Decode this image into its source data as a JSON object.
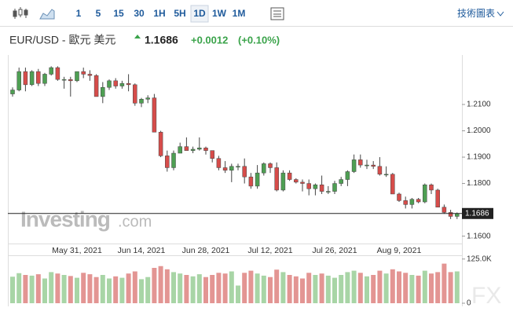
{
  "toolbar": {
    "intervals": [
      "1",
      "5",
      "15",
      "30",
      "1H",
      "5H",
      "1D",
      "1W",
      "1M"
    ],
    "selected": "1D",
    "chart_link": "技術圖表"
  },
  "header": {
    "symbol": "EUR/USD - 歐元 美元",
    "price": "1.1686",
    "change": "+0.0012",
    "change_percent": "(+0.10%)"
  },
  "watermark": {
    "brand": "Investing",
    "domain": ".com",
    "corner": "FX"
  },
  "chart_data": {
    "type": "candlestick",
    "categories": [
      null,
      null,
      null,
      null,
      null,
      null,
      null,
      null,
      null,
      null,
      "May 31, 2021",
      null,
      null,
      null,
      null,
      null,
      null,
      null,
      null,
      null,
      "Jun 14, 2021",
      null,
      null,
      null,
      null,
      null,
      null,
      null,
      null,
      null,
      "Jun 28, 2021",
      null,
      null,
      null,
      null,
      null,
      null,
      null,
      null,
      null,
      "Jul 12, 2021",
      null,
      null,
      null,
      null,
      null,
      null,
      null,
      null,
      null,
      "Jul 26, 2021",
      null,
      null,
      null,
      null,
      null,
      null,
      null,
      null,
      null,
      "Aug 9, 2021",
      null,
      null,
      null,
      null,
      null,
      null,
      null,
      null,
      null
    ],
    "open": [
      1.214,
      1.2155,
      1.2225,
      1.2175,
      1.2225,
      1.218,
      1.2215,
      1.224,
      1.2195,
      1.2195,
      1.219,
      1.2225,
      1.2215,
      1.221,
      1.213,
      1.2165,
      1.219,
      1.217,
      1.218,
      1.2175,
      1.2105,
      1.212,
      1.2125,
      1.1995,
      1.1905,
      1.186,
      1.1915,
      1.194,
      1.1925,
      1.193,
      1.1935,
      1.1925,
      1.1895,
      1.186,
      1.185,
      1.1865,
      1.1865,
      1.1825,
      1.179,
      1.184,
      1.1875,
      1.186,
      1.1775,
      1.184,
      1.1815,
      1.1805,
      1.18,
      1.178,
      1.1795,
      1.177,
      1.177,
      1.18,
      1.1815,
      1.1845,
      1.189,
      1.187,
      1.187,
      1.1865,
      1.1835,
      1.1835,
      1.176,
      1.1735,
      1.172,
      1.174,
      1.173,
      1.1795,
      1.1775,
      1.171,
      1.169,
      1.1675
    ],
    "high": [
      1.2165,
      1.224,
      1.224,
      1.223,
      1.2235,
      1.222,
      1.2245,
      1.2245,
      1.2205,
      1.2205,
      1.2225,
      1.224,
      1.223,
      1.2215,
      1.2185,
      1.2195,
      1.22,
      1.219,
      1.2215,
      1.218,
      1.2125,
      1.2135,
      1.214,
      1.2,
      1.1925,
      1.1925,
      1.1955,
      1.1975,
      1.194,
      1.1975,
      1.194,
      1.1925,
      1.1905,
      1.1885,
      1.1875,
      1.1875,
      1.1895,
      1.184,
      1.187,
      1.188,
      1.188,
      1.188,
      1.185,
      1.185,
      1.182,
      1.1815,
      1.1815,
      1.18,
      1.183,
      1.179,
      1.181,
      1.1825,
      1.185,
      1.191,
      1.191,
      1.189,
      1.1885,
      1.19,
      1.1865,
      1.184,
      1.1765,
      1.175,
      1.1745,
      1.1745,
      1.18,
      1.18,
      1.178,
      1.172,
      1.17,
      1.169
    ],
    "low": [
      1.213,
      1.215,
      1.215,
      1.217,
      1.217,
      1.217,
      1.221,
      1.219,
      1.216,
      1.213,
      1.2185,
      1.22,
      1.219,
      1.213,
      1.2105,
      1.2155,
      1.216,
      1.216,
      1.215,
      1.2095,
      1.209,
      1.2105,
      1.1995,
      1.19,
      1.1845,
      1.185,
      1.1915,
      1.1925,
      1.1915,
      1.1925,
      1.191,
      1.188,
      1.185,
      1.184,
      1.1805,
      1.185,
      1.18,
      1.178,
      1.178,
      1.183,
      1.184,
      1.177,
      1.177,
      1.181,
      1.18,
      1.177,
      1.1755,
      1.1755,
      1.176,
      1.176,
      1.176,
      1.179,
      1.179,
      1.184,
      1.186,
      1.1855,
      1.1855,
      1.183,
      1.1825,
      1.176,
      1.173,
      1.1705,
      1.1705,
      1.1725,
      1.1725,
      1.176,
      1.171,
      1.1685,
      1.1665,
      1.1665
    ],
    "close": [
      1.2155,
      1.2225,
      1.2175,
      1.2225,
      1.218,
      1.2215,
      1.224,
      1.2195,
      1.2195,
      1.219,
      1.2225,
      1.2215,
      1.221,
      1.213,
      1.2165,
      1.219,
      1.217,
      1.218,
      1.2175,
      1.2105,
      1.212,
      1.2125,
      1.1995,
      1.1905,
      1.186,
      1.1915,
      1.194,
      1.1925,
      1.193,
      1.1935,
      1.1925,
      1.1895,
      1.186,
      1.185,
      1.1865,
      1.1865,
      1.1825,
      1.179,
      1.184,
      1.1875,
      1.186,
      1.1775,
      1.184,
      1.1815,
      1.1805,
      1.18,
      1.178,
      1.1795,
      1.177,
      1.177,
      1.18,
      1.1815,
      1.1845,
      1.189,
      1.187,
      1.187,
      1.1865,
      1.1835,
      1.1835,
      1.176,
      1.1735,
      1.172,
      1.174,
      1.173,
      1.1795,
      1.1775,
      1.171,
      1.169,
      1.1675,
      1.1686
    ],
    "volume": {
      "values": [
        75000,
        85000,
        80000,
        78000,
        82000,
        70000,
        88000,
        84000,
        80000,
        77000,
        72000,
        86000,
        82000,
        74000,
        80000,
        70000,
        76000,
        72000,
        84000,
        90000,
        68000,
        74000,
        100000,
        105000,
        96000,
        88000,
        84000,
        80000,
        76000,
        82000,
        74000,
        80000,
        86000,
        84000,
        90000,
        50000,
        86000,
        92000,
        84000,
        78000,
        74000,
        95000,
        88000,
        80000,
        76000,
        70000,
        86000,
        80000,
        84000,
        78000,
        72000,
        80000,
        88000,
        92000,
        86000,
        76000,
        80000,
        92000,
        84000,
        96000,
        90000,
        86000,
        80000,
        78000,
        92000,
        84000,
        88000,
        112000,
        88000,
        90000
      ],
      "ylim": [
        0,
        140000
      ],
      "yticks": [
        0,
        {
          "value": 125000,
          "label": "125.0K"
        }
      ],
      "up_color": "#a8d5a6",
      "down_color": "#e39593"
    },
    "up_color": "#4e9f53",
    "down_color": "#d64c4a",
    "ylim": [
      1.1572,
      1.2273
    ],
    "yticks": [
      {
        "value": 1.16,
        "label": "1.1600"
      },
      {
        "value": 1.18,
        "label": "1.1800"
      },
      {
        "value": 1.19,
        "label": "1.1900"
      },
      {
        "value": 1.2,
        "label": "1.2000"
      },
      {
        "value": 1.21,
        "label": "1.2100"
      }
    ],
    "last_price": 1.1686
  }
}
